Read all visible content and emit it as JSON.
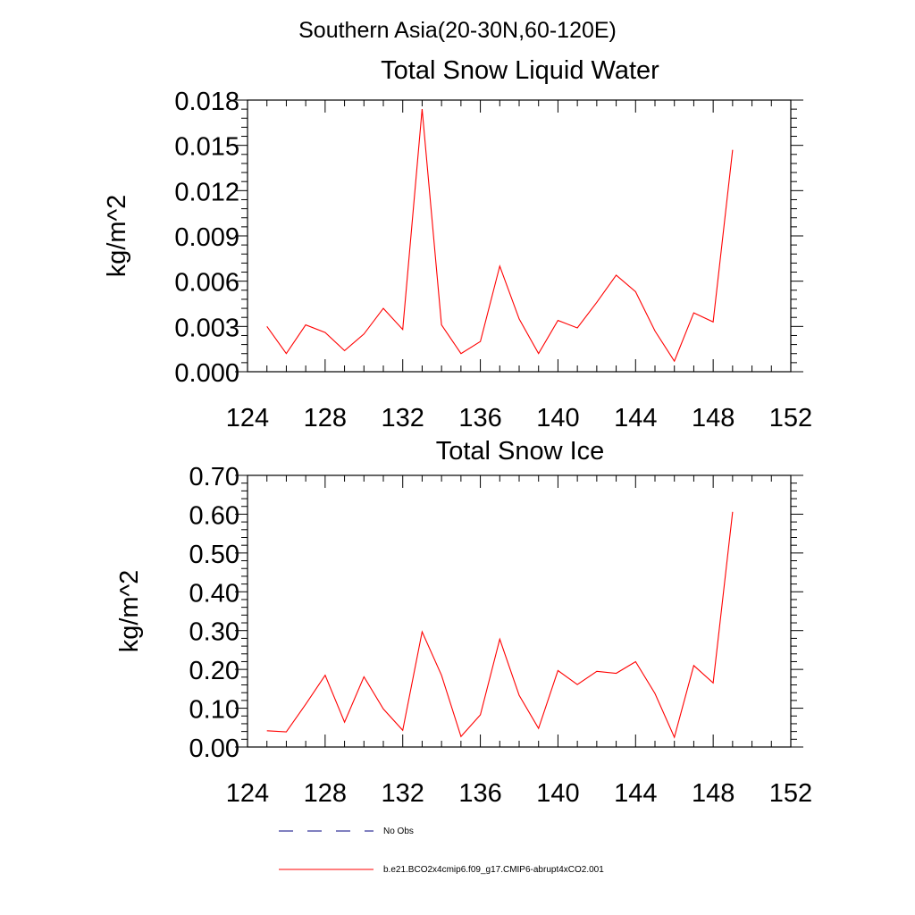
{
  "figure": {
    "suptitle": "Southern Asia(20-30N,60-120E)"
  },
  "chart_data": [
    {
      "type": "line",
      "title": "Total Snow Liquid Water",
      "xlabel": "",
      "ylabel": "kg/m^2",
      "xlim": [
        124,
        152
      ],
      "ylim": [
        0,
        0.018
      ],
      "xticks": [
        124,
        128,
        132,
        136,
        140,
        144,
        148,
        152
      ],
      "xtick_labels": [
        "124",
        "128",
        "132",
        "136",
        "140",
        "144",
        "148",
        "152"
      ],
      "yticks": [
        0,
        0.003,
        0.006,
        0.009,
        0.012,
        0.015,
        0.018
      ],
      "ytick_labels": [
        "0.000",
        "0.003",
        "0.006",
        "0.009",
        "0.012",
        "0.015",
        "0.018"
      ],
      "series": [
        {
          "name": "b.e21.BCO2x4cmip6.f09_g17.CMIP6-abrupt4xCO2.001",
          "color": "#ff0000",
          "x": [
            125,
            126,
            127,
            128,
            129,
            130,
            131,
            132,
            133,
            134,
            135,
            136,
            137,
            138,
            139,
            140,
            141,
            142,
            143,
            144,
            145,
            146,
            147,
            148,
            149
          ],
          "values": [
            0.003,
            0.0012,
            0.0031,
            0.0026,
            0.0014,
            0.0025,
            0.0042,
            0.0028,
            0.0174,
            0.0031,
            0.0012,
            0.002,
            0.007,
            0.0035,
            0.0012,
            0.0034,
            0.0029,
            0.0046,
            0.0064,
            0.0053,
            0.0027,
            0.0007,
            0.0039,
            0.0033,
            0.0147
          ]
        }
      ]
    },
    {
      "type": "line",
      "title": "Total Snow Ice",
      "xlabel": "",
      "ylabel": "kg/m^2",
      "xlim": [
        124,
        152
      ],
      "ylim": [
        0,
        0.7
      ],
      "xticks": [
        124,
        128,
        132,
        136,
        140,
        144,
        148,
        152
      ],
      "xtick_labels": [
        "124",
        "128",
        "132",
        "136",
        "140",
        "144",
        "148",
        "152"
      ],
      "yticks": [
        0,
        0.1,
        0.2,
        0.3,
        0.4,
        0.5,
        0.6,
        0.7
      ],
      "ytick_labels": [
        "0.00",
        "0.10",
        "0.20",
        "0.30",
        "0.40",
        "0.50",
        "0.60",
        "0.70"
      ],
      "series": [
        {
          "name": "b.e21.BCO2x4cmip6.f09_g17.CMIP6-abrupt4xCO2.001",
          "color": "#ff0000",
          "x": [
            125,
            126,
            127,
            128,
            129,
            130,
            131,
            132,
            133,
            134,
            135,
            136,
            137,
            138,
            139,
            140,
            141,
            142,
            143,
            144,
            145,
            146,
            147,
            148,
            149
          ],
          "values": [
            0.042,
            0.039,
            0.11,
            0.185,
            0.064,
            0.181,
            0.098,
            0.043,
            0.297,
            0.185,
            0.027,
            0.083,
            0.278,
            0.133,
            0.048,
            0.197,
            0.161,
            0.195,
            0.19,
            0.22,
            0.138,
            0.025,
            0.21,
            0.165,
            0.606
          ]
        }
      ]
    }
  ],
  "legend": {
    "entries": [
      {
        "label": "No Obs",
        "style": "dashed",
        "color": "#000080"
      },
      {
        "label": "b.e21.BCO2x4cmip6.f09_g17.CMIP6-abrupt4xCO2.001",
        "style": "solid",
        "color": "#ff0000"
      }
    ]
  }
}
